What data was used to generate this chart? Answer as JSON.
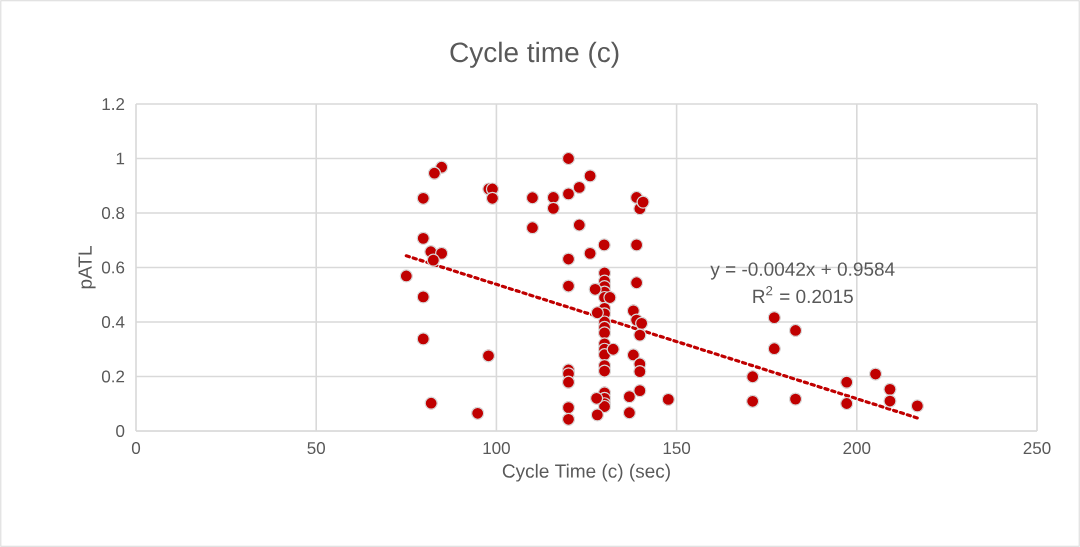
{
  "chart_data": {
    "type": "scatter",
    "title": "Cycle time (c)",
    "xlabel": "Cycle Time (c) (sec)",
    "ylabel": "pATL",
    "xlim": [
      0,
      250
    ],
    "xticks": [
      0,
      50,
      100,
      150,
      200,
      250
    ],
    "ylim": [
      0,
      1.2
    ],
    "yticks": [
      0,
      0.2,
      0.4,
      0.6,
      0.8,
      1,
      1.2
    ],
    "grid": true,
    "annotations": [
      "y = -0.0042x + 0.9584",
      "R$^{2}$ = 0.2015"
    ],
    "series": [
      {
        "color": "#c00000",
        "marker": "circle",
        "x": [
          84.8,
          82.8,
          79.7,
          97.9,
          98.9,
          98.9,
          110,
          115.8,
          115.8,
          110,
          79.7,
          81.8,
          84.8,
          82.5,
          75,
          79.7,
          79.7,
          97.8,
          81.9,
          94.8,
          120,
          126,
          123,
          120,
          138.9,
          139.8,
          140.7,
          123,
          129.9,
          138.9,
          126,
          120,
          138.9,
          120,
          130,
          130,
          130,
          130,
          130,
          130,
          130,
          130,
          130,
          130,
          130,
          130,
          130,
          130,
          130,
          130,
          130,
          130,
          130,
          127.4,
          131.5,
          128,
          132.4,
          138,
          138.9,
          140.3,
          139.8,
          138,
          139.8,
          139.8,
          120,
          120,
          120,
          120,
          120,
          139.8,
          136.9,
          136.9,
          128,
          127.8,
          147.7,
          177.1,
          183,
          177.1,
          171.1,
          171.1,
          183,
          197.2,
          197.2,
          205.2,
          209.2,
          209.2,
          216.8
        ],
        "values": [
          0.968,
          0.946,
          0.854,
          0.888,
          0.888,
          0.854,
          0.856,
          0.857,
          0.817,
          0.746,
          0.707,
          0.658,
          0.652,
          0.627,
          0.569,
          0.492,
          0.338,
          0.276,
          0.102,
          0.065,
          1.0,
          0.936,
          0.894,
          0.87,
          0.857,
          0.816,
          0.84,
          0.756,
          0.683,
          0.683,
          0.652,
          0.631,
          0.544,
          0.532,
          0.58,
          0.55,
          0.53,
          0.51,
          0.49,
          0.45,
          0.43,
          0.4,
          0.38,
          0.36,
          0.32,
          0.3,
          0.28,
          0.24,
          0.22,
          0.14,
          0.12,
          0.1,
          0.09,
          0.52,
          0.49,
          0.434,
          0.3,
          0.441,
          0.407,
          0.395,
          0.352,
          0.279,
          0.246,
          0.218,
          0.224,
          0.21,
          0.179,
          0.086,
          0.043,
          0.148,
          0.126,
          0.067,
          0.059,
          0.12,
          0.116,
          0.416,
          0.369,
          0.302,
          0.199,
          0.109,
          0.117,
          0.179,
          0.101,
          0.209,
          0.153,
          0.11,
          0.092
        ]
      },
      {
        "type": "line",
        "color": "#c00000",
        "line_style": "dotted",
        "marker": "none",
        "x": [
          75,
          217
        ],
        "values": [
          0.643,
          0.047
        ]
      }
    ]
  }
}
